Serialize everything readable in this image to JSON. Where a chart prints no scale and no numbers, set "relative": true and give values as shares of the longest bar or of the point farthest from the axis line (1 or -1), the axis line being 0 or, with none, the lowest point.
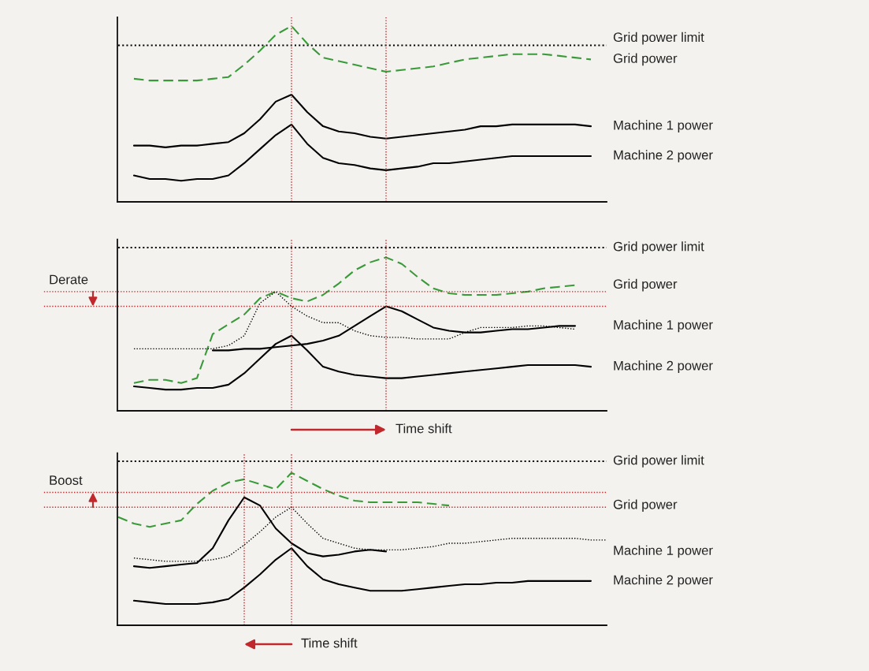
{
  "chart_data": [
    {
      "type": "line",
      "relative": true,
      "legend": false,
      "marker": "none",
      "categories": [
        null,
        null,
        null,
        null,
        null,
        null,
        null,
        null,
        null,
        null,
        null,
        null,
        null,
        null,
        null,
        null,
        null,
        null,
        null,
        null,
        null,
        null,
        null,
        null,
        null,
        null,
        null,
        null,
        null,
        null,
        null,
        null
      ],
      "series": [
        {
          "name": "Grid power limit",
          "color": "#000000",
          "line_style": "dotted",
          "values": [
            0.89,
            0.89,
            0.89,
            0.89,
            0.89,
            0.89,
            0.89,
            0.89,
            0.89,
            0.89,
            0.89,
            0.89,
            0.89,
            0.89,
            0.89,
            0.89,
            0.89,
            0.89,
            0.89,
            0.89,
            0.89,
            0.89,
            0.89,
            0.89,
            0.89,
            0.89,
            0.89,
            0.89,
            0.89,
            0.89,
            0.89,
            0.89
          ]
        },
        {
          "name": "Grid power",
          "color": "#3a9a3a",
          "line_style": "dashed",
          "values": [
            null,
            0.7,
            0.69,
            0.69,
            0.69,
            0.69,
            0.7,
            0.71,
            0.78,
            0.86,
            0.95,
            1.0,
            0.9,
            0.82,
            0.8,
            0.78,
            0.76,
            0.74,
            0.75,
            0.76,
            0.77,
            0.79,
            0.81,
            0.82,
            0.83,
            0.84,
            0.84,
            0.84,
            0.83,
            0.82,
            0.81,
            null
          ]
        },
        {
          "name": "Machine 1 power",
          "color": "#000000",
          "line_style": "solid",
          "values": [
            null,
            0.32,
            0.32,
            0.31,
            0.32,
            0.32,
            0.33,
            0.34,
            0.39,
            0.47,
            0.57,
            0.61,
            0.51,
            0.43,
            0.4,
            0.39,
            0.37,
            0.36,
            0.37,
            0.38,
            0.39,
            0.4,
            0.41,
            0.43,
            0.43,
            0.44,
            0.44,
            0.44,
            0.44,
            0.44,
            0.43,
            null
          ]
        },
        {
          "name": "Machine 2 power",
          "color": "#000000",
          "line_style": "solid",
          "values": [
            null,
            0.15,
            0.13,
            0.13,
            0.12,
            0.13,
            0.13,
            0.15,
            0.22,
            0.3,
            0.38,
            0.44,
            0.33,
            0.25,
            0.22,
            0.21,
            0.19,
            0.18,
            0.19,
            0.2,
            0.22,
            0.22,
            0.23,
            0.24,
            0.25,
            0.26,
            0.26,
            0.26,
            0.26,
            0.26,
            0.26,
            null
          ]
        }
      ]
    },
    {
      "type": "line",
      "relative": true,
      "legend": false,
      "marker": "none",
      "categories": [
        null,
        null,
        null,
        null,
        null,
        null,
        null,
        null,
        null,
        null,
        null,
        null,
        null,
        null,
        null,
        null,
        null,
        null,
        null,
        null,
        null,
        null,
        null,
        null,
        null,
        null,
        null,
        null,
        null,
        null,
        null,
        null
      ],
      "series": [
        {
          "name": "Grid power limit",
          "color": "#000000",
          "line_style": "dotted",
          "values": [
            1,
            1,
            1,
            1,
            1,
            1,
            1,
            1,
            1,
            1,
            1,
            1,
            1,
            1,
            1,
            1,
            1,
            1,
            1,
            1,
            1,
            1,
            1,
            1,
            1,
            1,
            1,
            1,
            1,
            1,
            1,
            1
          ]
        },
        {
          "name": "Grid power",
          "color": "#3a9a3a",
          "line_style": "dashed",
          "values": [
            null,
            0.17,
            0.19,
            0.19,
            0.17,
            0.2,
            0.47,
            0.53,
            0.59,
            0.69,
            0.73,
            0.69,
            0.67,
            0.71,
            0.78,
            0.86,
            0.91,
            0.94,
            0.9,
            0.82,
            0.75,
            0.72,
            0.71,
            0.71,
            0.71,
            0.72,
            0.73,
            0.75,
            0.76,
            0.77,
            null,
            null
          ]
        },
        {
          "color": "#000000",
          "line_style": "dotted",
          "values": [
            null,
            0.38,
            0.38,
            0.38,
            0.38,
            0.38,
            0.38,
            0.4,
            0.46,
            0.66,
            0.73,
            0.64,
            0.58,
            0.54,
            0.54,
            0.49,
            0.46,
            0.45,
            0.45,
            0.44,
            0.44,
            0.44,
            0.48,
            0.51,
            0.51,
            0.51,
            0.52,
            0.52,
            0.51,
            0.5,
            null,
            null
          ]
        },
        {
          "name": "Machine 1 power",
          "color": "#000000",
          "line_style": "solid",
          "values": [
            null,
            null,
            null,
            null,
            null,
            null,
            0.37,
            0.37,
            0.38,
            0.38,
            0.39,
            0.4,
            0.41,
            0.43,
            0.46,
            0.52,
            0.58,
            0.64,
            0.61,
            0.56,
            0.51,
            0.49,
            0.48,
            0.48,
            0.49,
            0.5,
            0.5,
            0.51,
            0.52,
            0.52,
            null,
            null
          ]
        },
        {
          "name": "Machine 2 power",
          "color": "#000000",
          "line_style": "solid",
          "values": [
            null,
            0.15,
            0.14,
            0.13,
            0.13,
            0.14,
            0.14,
            0.16,
            0.23,
            0.32,
            0.41,
            0.46,
            0.37,
            0.27,
            0.24,
            0.22,
            0.21,
            0.2,
            0.2,
            0.21,
            0.22,
            0.23,
            0.24,
            0.25,
            0.26,
            0.27,
            0.28,
            0.28,
            0.28,
            0.28,
            0.27,
            null
          ]
        }
      ],
      "ref_lines": [
        {
          "axis": "y",
          "value": 0.73,
          "color": "#c0282d",
          "line_style": "dotted"
        },
        {
          "axis": "y",
          "value": 0.64,
          "color": "#c0282d",
          "line_style": "dotted"
        }
      ],
      "annotations": [
        "Derate",
        "Time shift"
      ]
    },
    {
      "type": "line",
      "relative": true,
      "legend": false,
      "marker": "none",
      "categories": [
        null,
        null,
        null,
        null,
        null,
        null,
        null,
        null,
        null,
        null,
        null,
        null,
        null,
        null,
        null,
        null,
        null,
        null,
        null,
        null,
        null,
        null,
        null,
        null,
        null,
        null,
        null,
        null,
        null,
        null,
        null,
        null
      ],
      "series": [
        {
          "name": "Grid power limit",
          "color": "#000000",
          "line_style": "dotted",
          "values": [
            1,
            1,
            1,
            1,
            1,
            1,
            1,
            1,
            1,
            1,
            1,
            1,
            1,
            1,
            1,
            1,
            1,
            1,
            1,
            1,
            1,
            1,
            1,
            1,
            1,
            1,
            1,
            1,
            1,
            1,
            1,
            1
          ]
        },
        {
          "name": "Grid power",
          "color": "#3a9a3a",
          "line_style": "dashed",
          "values": [
            0.66,
            0.62,
            0.6,
            0.62,
            0.64,
            0.74,
            0.82,
            0.87,
            0.89,
            0.86,
            0.83,
            0.93,
            0.88,
            0.83,
            0.79,
            0.76,
            0.75,
            0.75,
            0.75,
            0.75,
            0.74,
            0.73,
            null,
            null,
            null,
            null,
            null,
            null,
            null,
            null,
            null,
            null
          ]
        },
        {
          "color": "#000000",
          "line_style": "dotted",
          "values": [
            null,
            0.41,
            0.4,
            0.39,
            0.39,
            0.39,
            0.4,
            0.42,
            0.49,
            0.57,
            0.66,
            0.72,
            0.62,
            0.53,
            0.5,
            0.47,
            0.46,
            0.46,
            0.46,
            0.47,
            0.48,
            0.5,
            0.5,
            0.51,
            0.52,
            0.53,
            0.53,
            0.53,
            0.53,
            0.53,
            0.52,
            0.52
          ]
        },
        {
          "name": "Machine 1 power",
          "color": "#000000",
          "line_style": "solid",
          "values": [
            null,
            0.36,
            0.35,
            0.36,
            0.37,
            0.38,
            0.47,
            0.64,
            0.78,
            0.73,
            0.59,
            0.5,
            0.44,
            0.42,
            0.43,
            0.45,
            0.46,
            0.45,
            null,
            null,
            null,
            null,
            null,
            null,
            null,
            null,
            null,
            null,
            null,
            null,
            null,
            null
          ]
        },
        {
          "name": "Machine 2 power",
          "color": "#000000",
          "line_style": "solid",
          "values": [
            null,
            0.15,
            0.14,
            0.13,
            0.13,
            0.13,
            0.14,
            0.16,
            0.23,
            0.31,
            0.4,
            0.47,
            0.36,
            0.28,
            0.25,
            0.23,
            0.21,
            0.21,
            0.21,
            0.22,
            0.23,
            0.24,
            0.25,
            0.25,
            0.26,
            0.26,
            0.27,
            0.27,
            0.27,
            0.27,
            0.27,
            null
          ]
        }
      ],
      "ref_lines": [
        {
          "axis": "y",
          "value": 0.72,
          "color": "#c0282d",
          "line_style": "dotted"
        },
        {
          "axis": "y",
          "value": 0.81,
          "color": "#c0282d",
          "line_style": "dotted"
        }
      ],
      "annotations": [
        "Boost",
        "Time shift"
      ]
    }
  ]
}
